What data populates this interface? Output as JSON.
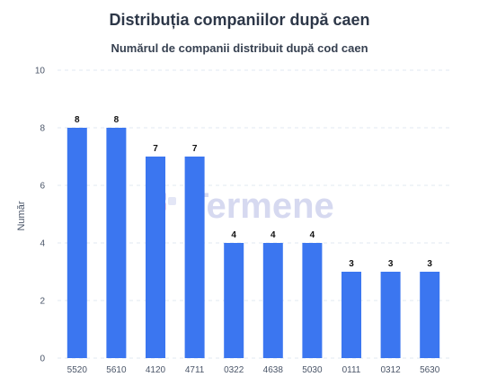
{
  "title": "Distribuția companiilor după caen",
  "watermark": "Termene",
  "chart_data": {
    "type": "bar",
    "title": "Numărul de companii distribuit după cod caen",
    "xlabel": "",
    "ylabel": "Număr",
    "categories": [
      "5520",
      "5610",
      "4120",
      "4711",
      "0322",
      "4638",
      "5030",
      "0111",
      "0312",
      "5630"
    ],
    "values": [
      8,
      8,
      7,
      7,
      4,
      4,
      4,
      3,
      3,
      3
    ],
    "ylim": [
      0,
      10
    ],
    "yticks": [
      0,
      2,
      4,
      6,
      8,
      10
    ],
    "grid": true,
    "bar_color": "#3b76f0"
  }
}
